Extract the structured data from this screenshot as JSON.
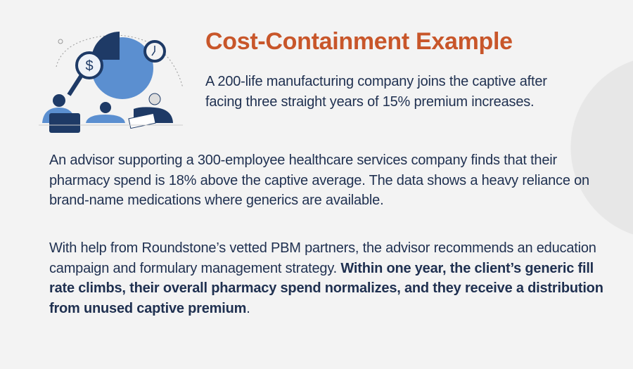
{
  "title": "Cost-Containment Example",
  "intro": "A 200-life manufacturing company joins the captive after facing three straight years of 15% premium increases.",
  "paragraph1": "An advisor supporting a 300-employee healthcare services company finds that their pharmacy spend is 18% above the captive average. The data shows a heavy reliance on brand-name medications where generics are available.",
  "paragraph2": {
    "normal": "With help from Roundstone’s vetted PBM partners, the advisor recommends an education campaign and formulary management strategy. ",
    "bold": "Within one year, the client’s generic fill rate climbs, their overall pharmacy spend normalizes, and they receive a distribution from unused captive premium",
    "end": "."
  },
  "colors": {
    "title": "#c8562a",
    "text": "#1f3050",
    "navy": "#1e3a66",
    "blue": "#5b8fd0",
    "background": "#f3f3f3"
  },
  "illustration": {
    "icons": [
      "pie-chart-icon",
      "magnifier-dollar-icon",
      "clock-icon",
      "laptop-icon",
      "document-icon"
    ]
  }
}
